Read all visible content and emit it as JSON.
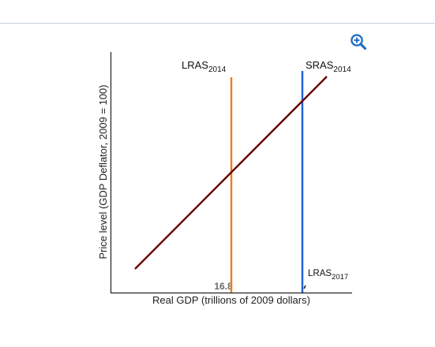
{
  "toolbar": {
    "zoom_icon": "zoom-in-icon",
    "accent": "#1f6fc5"
  },
  "chart_data": {
    "type": "line",
    "xlabel": "Real GDP (trillions of 2009 dollars)",
    "ylabel": "Price level (GDP Deflator, 2009 = 100)",
    "x_ticks": [
      "16.8"
    ],
    "grid": false,
    "series": [
      {
        "name": "LRAS",
        "sub": "2014",
        "kind": "vertical",
        "x": 16.8,
        "color": "#f07a1a"
      },
      {
        "name": "SRAS",
        "sub": "2014",
        "kind": "upward-sloping",
        "color": "#6b0000"
      },
      {
        "name": "LRAS",
        "sub": "2017",
        "kind": "vertical",
        "color": "#1f5fd0"
      }
    ]
  }
}
